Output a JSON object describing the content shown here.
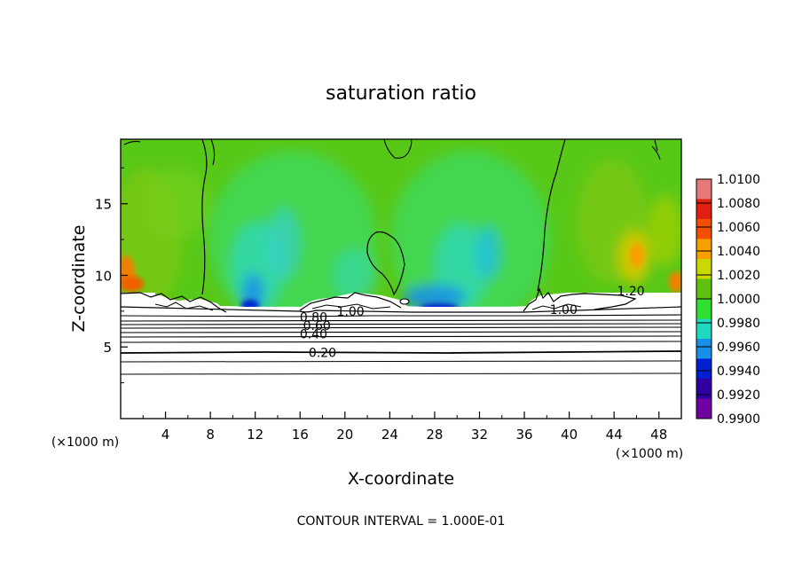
{
  "chart_data": {
    "type": "heatmap",
    "title": "saturation ratio",
    "xlabel": "X-coordinate",
    "ylabel": "Z-coordinate",
    "x_unit": "(×1000 m)",
    "y_unit": "(×1000 m)",
    "xlim": [
      0,
      50
    ],
    "ylim": [
      0,
      19.5
    ],
    "x_ticks": [
      "4",
      "8",
      "12",
      "16",
      "20",
      "24",
      "28",
      "32",
      "36",
      "40",
      "44",
      "48"
    ],
    "y_ticks": [
      "5",
      "10",
      "15"
    ],
    "colorbar": {
      "values": [
        "1.0100",
        "1.0080",
        "1.0060",
        "1.0040",
        "1.0020",
        "1.0000",
        "0.9980",
        "0.9960",
        "0.9940",
        "0.9920",
        "0.9900"
      ],
      "colors": [
        "#e87878",
        "#e02010",
        "#f05000",
        "#f8a000",
        "#c8d800",
        "#60c010",
        "#30e030",
        "#20d8c0",
        "#1890e8",
        "#0020d0",
        "#3000a0",
        "#7000a0"
      ]
    },
    "contour_labels": [
      {
        "text": "0.20",
        "x": 18,
        "y": 4.6
      },
      {
        "text": "0.40",
        "x": 17.2,
        "y": 5.9
      },
      {
        "text": "0.60",
        "x": 17.5,
        "y": 6.5
      },
      {
        "text": "0.80",
        "x": 17.2,
        "y": 7.1
      },
      {
        "text": "1.00",
        "x": 20.5,
        "y": 7.5
      },
      {
        "text": "1.00",
        "x": 39.5,
        "y": 7.6
      },
      {
        "text": "1.20",
        "x": 45.5,
        "y": 8.9
      }
    ],
    "grid": false,
    "legend_placement": "right"
  },
  "footer": {
    "contour_interval": "CONTOUR INTERVAL = 1.000E-01"
  }
}
